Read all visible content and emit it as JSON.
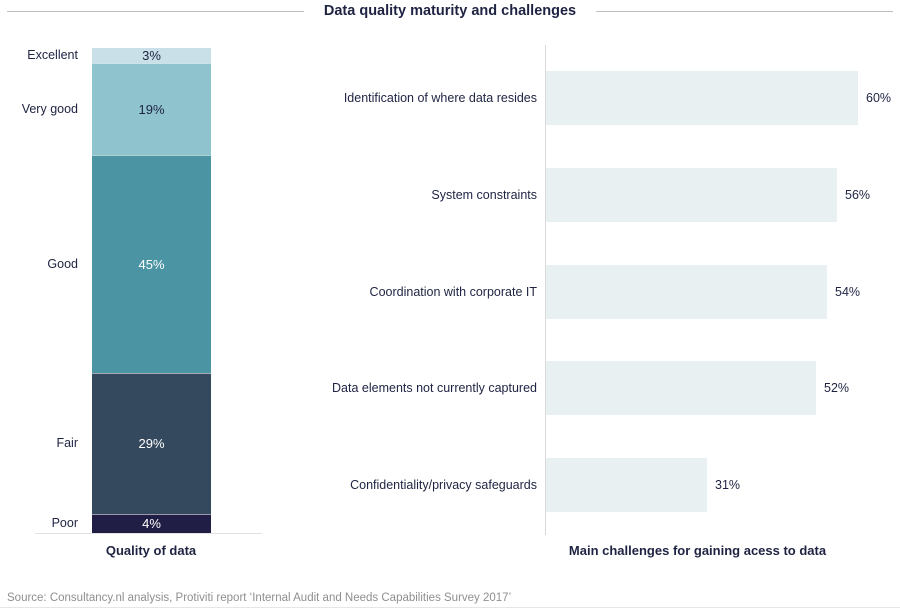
{
  "title": "Data quality maturity and challenges",
  "source": "Source: Consultancy.nl analysis, Protiviti report ‘Internal Audit and Needs Capabilities Survey 2017’",
  "colors": {
    "text_navy": "#1e2342",
    "title_rule": "#bfbfbf",
    "value_axis_line": "#d9d9d9",
    "stacked_baseline": "#e2e2e2",
    "source_text": "#8f8f8f",
    "hbar_fill": "#e9f0f1"
  },
  "chart_data": [
    {
      "type": "bar",
      "subtype": "stacked-column-100",
      "title": "Quality of data",
      "categories": [
        "Excellent",
        "Very good",
        "Good",
        "Fair",
        "Poor"
      ],
      "values": [
        3,
        19,
        45,
        29,
        4
      ],
      "value_labels": [
        "3%",
        "19%",
        "45%",
        "29%",
        "4%"
      ],
      "unit": "%",
      "ylim": [
        0,
        100
      ],
      "grid": false,
      "legend": "none",
      "segment_colors": [
        "#c9e0e9",
        "#8fc3ce",
        "#4a94a4",
        "#35495e",
        "#211e45"
      ],
      "segment_label_colors": [
        "#1e2342",
        "#1e2342",
        "#ffffff",
        "#ffffff",
        "#ffffff"
      ]
    },
    {
      "type": "bar",
      "subtype": "horizontal",
      "title": "Main challenges for gaining acess to data",
      "categories": [
        "Identification of where data resides",
        "System constraints",
        "Coordination with corporate IT",
        "Data elements not currently captured",
        "Confidentiality/privacy safeguards"
      ],
      "values": [
        60,
        56,
        54,
        52,
        31
      ],
      "value_labels": [
        "60%",
        "56%",
        "54%",
        "52%",
        "31%"
      ],
      "unit": "%",
      "xlim": [
        0,
        65
      ],
      "grid": false,
      "legend": "none",
      "bar_fill": "#e9f0f1"
    }
  ]
}
